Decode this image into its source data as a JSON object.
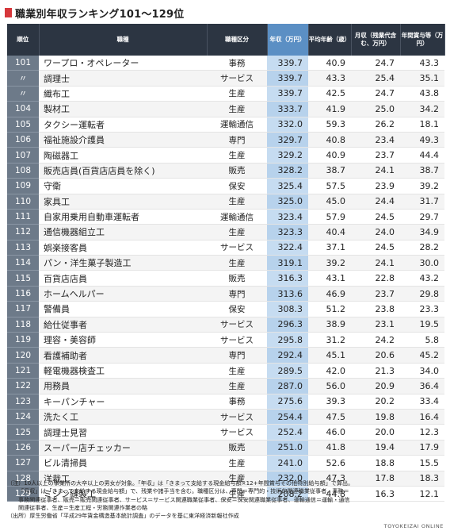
{
  "title": "職業別年収ランキング101〜129位",
  "headers": {
    "rank": "順位",
    "job": "職種",
    "category": "職種区分",
    "income": "年収（万円）",
    "age": "平均年齢（歳）",
    "monthly": "月収（残業代含む、万円）",
    "bonus": "年間賞与等（万円）"
  },
  "rows": [
    {
      "rank": "101",
      "job": "ワープロ・オペレーター",
      "category": "事務",
      "income": "339.7",
      "age": "40.9",
      "monthly": "24.7",
      "bonus": "43.3"
    },
    {
      "rank": "〃",
      "job": "調理士",
      "category": "サービス",
      "income": "339.7",
      "age": "43.3",
      "monthly": "25.4",
      "bonus": "35.1"
    },
    {
      "rank": "〃",
      "job": "織布工",
      "category": "生産",
      "income": "339.7",
      "age": "42.5",
      "monthly": "24.7",
      "bonus": "43.8"
    },
    {
      "rank": "104",
      "job": "製材工",
      "category": "生産",
      "income": "333.7",
      "age": "41.9",
      "monthly": "25.0",
      "bonus": "34.2"
    },
    {
      "rank": "105",
      "job": "タクシー運転者",
      "category": "運輸通信",
      "income": "332.0",
      "age": "59.3",
      "monthly": "26.2",
      "bonus": "18.1"
    },
    {
      "rank": "106",
      "job": "福祉施設介護員",
      "category": "専門",
      "income": "329.7",
      "age": "40.8",
      "monthly": "23.4",
      "bonus": "49.3"
    },
    {
      "rank": "107",
      "job": "陶磁器工",
      "category": "生産",
      "income": "329.2",
      "age": "40.9",
      "monthly": "23.7",
      "bonus": "44.4"
    },
    {
      "rank": "108",
      "job": "販売店員(百貨店店員を除く)",
      "category": "販売",
      "income": "328.2",
      "age": "38.7",
      "monthly": "24.1",
      "bonus": "38.7"
    },
    {
      "rank": "109",
      "job": "守衛",
      "category": "保安",
      "income": "325.4",
      "age": "57.5",
      "monthly": "23.9",
      "bonus": "39.2"
    },
    {
      "rank": "110",
      "job": "家具工",
      "category": "生産",
      "income": "325.0",
      "age": "45.0",
      "monthly": "24.4",
      "bonus": "31.7"
    },
    {
      "rank": "111",
      "job": "自家用乗用自動車運転者",
      "category": "運輸通信",
      "income": "323.4",
      "age": "57.9",
      "monthly": "24.5",
      "bonus": "29.7"
    },
    {
      "rank": "112",
      "job": "通信機器組立工",
      "category": "生産",
      "income": "323.3",
      "age": "40.4",
      "monthly": "24.0",
      "bonus": "34.9"
    },
    {
      "rank": "113",
      "job": "娯楽接客員",
      "category": "サービス",
      "income": "322.4",
      "age": "37.1",
      "monthly": "24.5",
      "bonus": "28.2"
    },
    {
      "rank": "114",
      "job": "パン・洋生菓子製造工",
      "category": "生産",
      "income": "319.1",
      "age": "39.2",
      "monthly": "24.1",
      "bonus": "30.0"
    },
    {
      "rank": "115",
      "job": "百貨店店員",
      "category": "販売",
      "income": "316.3",
      "age": "43.1",
      "monthly": "22.8",
      "bonus": "43.2"
    },
    {
      "rank": "116",
      "job": "ホームヘルパー",
      "category": "専門",
      "income": "313.6",
      "age": "46.9",
      "monthly": "23.7",
      "bonus": "29.8"
    },
    {
      "rank": "117",
      "job": "警備員",
      "category": "保安",
      "income": "308.3",
      "age": "51.2",
      "monthly": "23.8",
      "bonus": "23.3"
    },
    {
      "rank": "118",
      "job": "給仕従事者",
      "category": "サービス",
      "income": "296.3",
      "age": "38.9",
      "monthly": "23.1",
      "bonus": "19.5"
    },
    {
      "rank": "119",
      "job": "理容・美容師",
      "category": "サービス",
      "income": "295.8",
      "age": "31.2",
      "monthly": "24.2",
      "bonus": "5.8"
    },
    {
      "rank": "120",
      "job": "看護補助者",
      "category": "専門",
      "income": "292.4",
      "age": "45.1",
      "monthly": "20.6",
      "bonus": "45.2"
    },
    {
      "rank": "121",
      "job": "軽電機器検査工",
      "category": "生産",
      "income": "289.5",
      "age": "42.0",
      "monthly": "21.3",
      "bonus": "34.0"
    },
    {
      "rank": "122",
      "job": "用務員",
      "category": "生産",
      "income": "287.0",
      "age": "56.0",
      "monthly": "20.9",
      "bonus": "36.4"
    },
    {
      "rank": "123",
      "job": "キーパンチャー",
      "category": "事務",
      "income": "275.6",
      "age": "39.3",
      "monthly": "20.2",
      "bonus": "33.4"
    },
    {
      "rank": "124",
      "job": "洗たく工",
      "category": "サービス",
      "income": "254.4",
      "age": "47.5",
      "monthly": "19.8",
      "bonus": "16.4"
    },
    {
      "rank": "125",
      "job": "調理士見習",
      "category": "サービス",
      "income": "252.4",
      "age": "46.0",
      "monthly": "20.0",
      "bonus": "12.3"
    },
    {
      "rank": "126",
      "job": "スーパー店チェッカー",
      "category": "販売",
      "income": "251.0",
      "age": "41.8",
      "monthly": "19.4",
      "bonus": "17.9"
    },
    {
      "rank": "127",
      "job": "ビル清掃員",
      "category": "生産",
      "income": "241.0",
      "age": "52.6",
      "monthly": "18.8",
      "bonus": "15.5"
    },
    {
      "rank": "128",
      "job": "洋裁工",
      "category": "生産",
      "income": "232.0",
      "age": "47.3",
      "monthly": "17.8",
      "bonus": "18.3"
    },
    {
      "rank": "129",
      "job": "ミシン縫製工",
      "category": "生産",
      "income": "208.2",
      "age": "44.8",
      "monthly": "16.3",
      "bonus": "12.1"
    }
  ],
  "notes": [
    "（注）10人以上の事業所の大卒以上の男女が対象。「年収」は「きまって支給する現金給与額×12+年間賞与その他特別給与額」で算出。",
    "「月収」は「きまって支給する現金給与額」で、残業や諸手当を含む。職種区分は、専門＝専門的・技術的関連職業従事者、事務＝",
    "事務関連従事者、販売＝販売関連従事者、サービス＝サービス関連職業従事者、保安＝保安関連職業従事者、運輸通信＝運輸・通信",
    "関連従事者、生産＝生産工程・労務関連作業者の略",
    "（出所）厚生労働省「平成29年賃金構造基本統計調査」のデータを基に東洋経済新報社作成"
  ],
  "brand": "TOYOKEIZAI ONLINE",
  "colors": {
    "accent": "#d6373b",
    "header_bg": "#2c3542",
    "highlight_header": "#5b8fc4",
    "highlight_cell": "#c6dcf1",
    "rank_bg": "#6d7a89"
  }
}
